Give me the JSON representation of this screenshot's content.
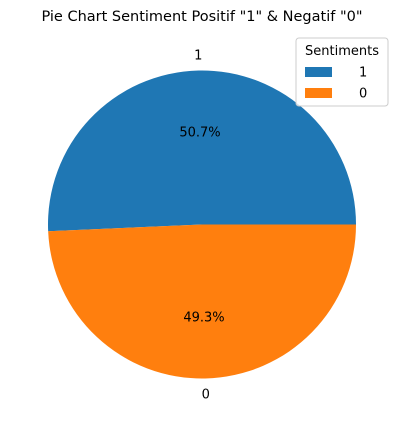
{
  "chart_data": {
    "type": "pie",
    "title": "Pie Chart Sentiment Positif \"1\" & Negatif \"0\"",
    "categories": [
      "1",
      "0"
    ],
    "values": [
      50.7,
      49.3
    ],
    "value_labels": [
      "50.7%",
      "49.3%"
    ],
    "colors": [
      "#1f77b4",
      "#ff7f0e"
    ],
    "legend": {
      "title": "Sentiments",
      "entries": [
        "1",
        "0"
      ],
      "placement": "top-right"
    }
  }
}
